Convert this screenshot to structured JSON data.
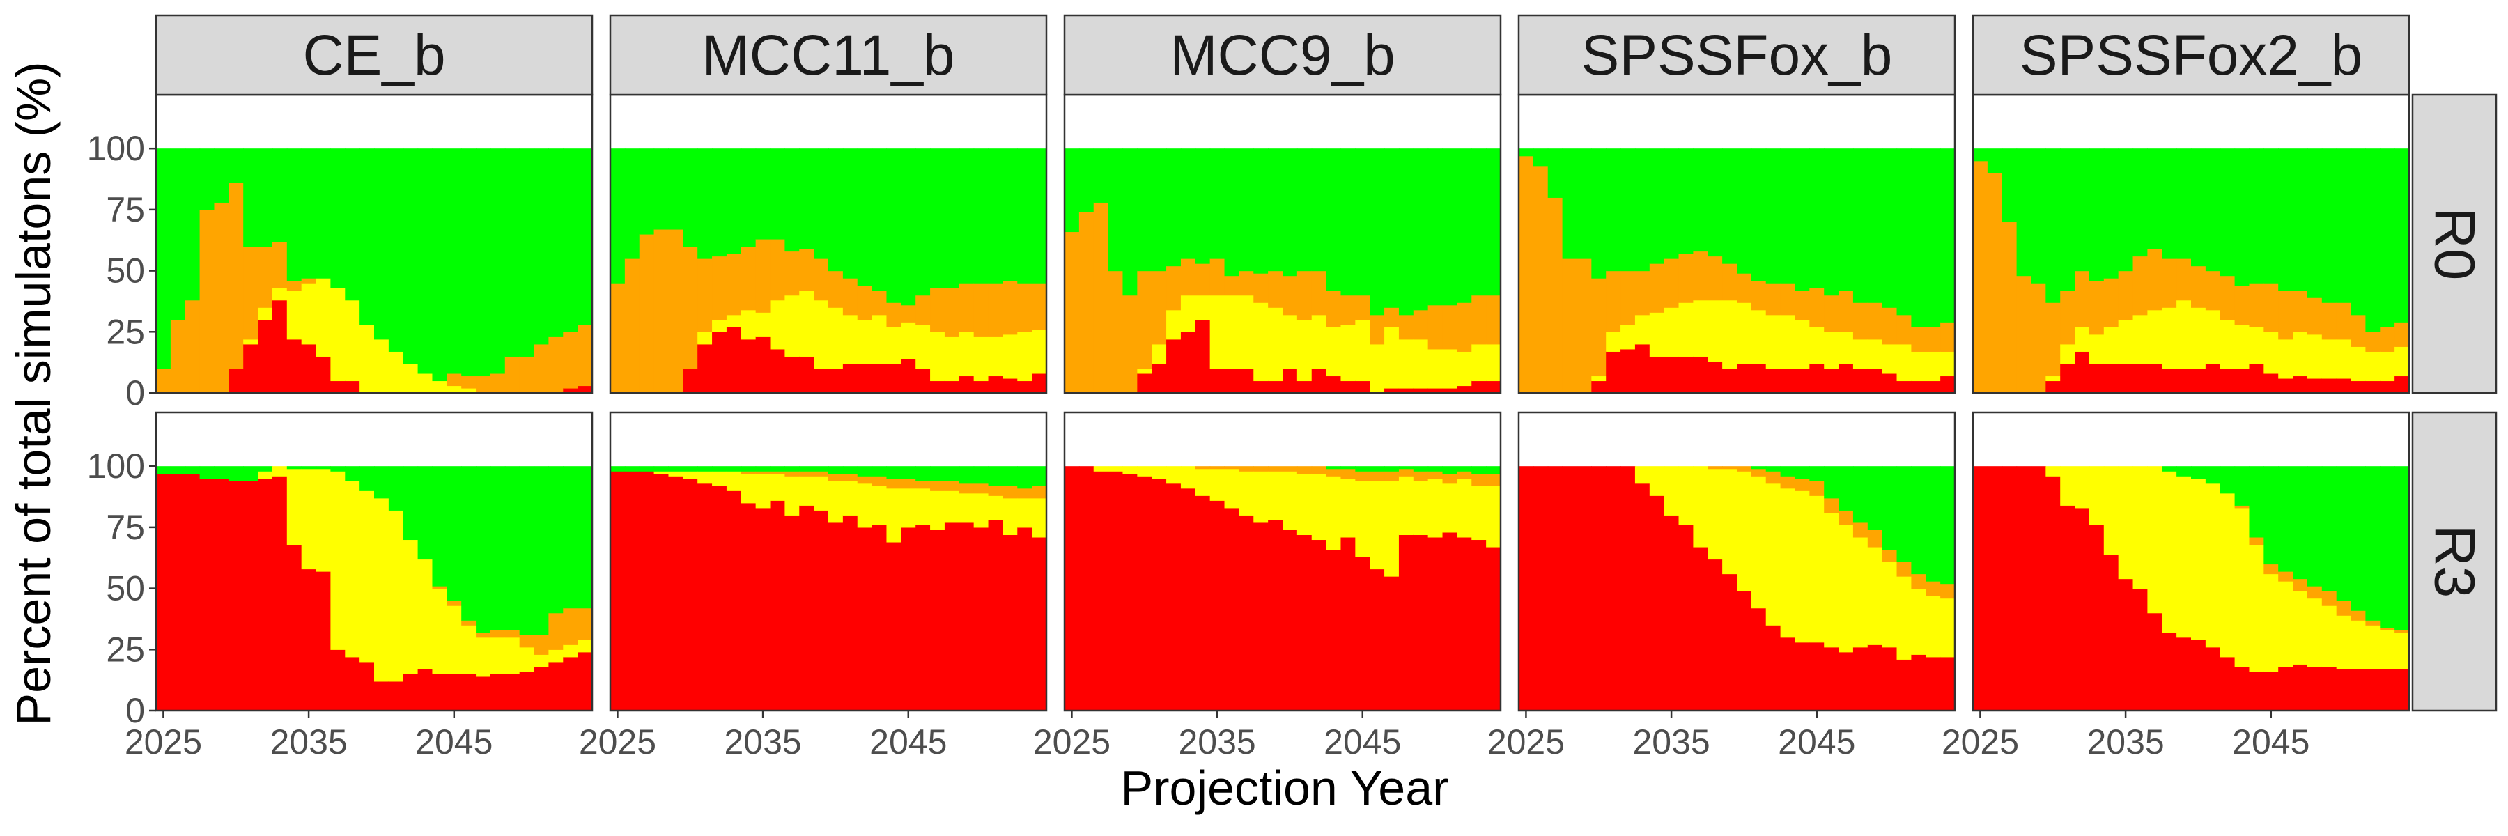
{
  "chart_data": {
    "type": "area",
    "facet_layout": "grid",
    "xlabel": "Projection Year",
    "ylabel": "Percent of total simulatons (%)",
    "xlim": [
      2024.5,
      2054.5
    ],
    "ylim": [
      0,
      100
    ],
    "xticks": [
      2025,
      2035,
      2045
    ],
    "yticks": [
      0,
      25,
      50,
      75,
      100
    ],
    "stack_order_bottom_to_top": [
      "red",
      "yellow",
      "orange",
      "green"
    ],
    "colors": {
      "red": "#ff0000",
      "yellow": "#ffff00",
      "orange": "#ffa500",
      "green": "#00ff00"
    },
    "legend": "none",
    "grid": false,
    "columns": [
      "CE_b",
      "MCC11_b",
      "MCC9_b",
      "SPSSFox_b",
      "SPSSFox2_b"
    ],
    "rows": [
      "R0",
      "R3"
    ],
    "years": [
      2025,
      2026,
      2027,
      2028,
      2029,
      2030,
      2031,
      2032,
      2033,
      2034,
      2035,
      2036,
      2037,
      2038,
      2039,
      2040,
      2041,
      2042,
      2043,
      2044,
      2045,
      2046,
      2047,
      2048,
      2049,
      2050,
      2051,
      2052,
      2053,
      2054
    ],
    "panels": [
      {
        "column": "CE_b",
        "row": "R0",
        "red": [
          0,
          0,
          0,
          0,
          0,
          10,
          20,
          30,
          38,
          22,
          20,
          15,
          5,
          5,
          0,
          0,
          0,
          0,
          0,
          0,
          0,
          0,
          0,
          0,
          0,
          0,
          0,
          0,
          2,
          3
        ],
        "yellow": [
          0,
          0,
          0,
          0,
          0,
          0,
          2,
          5,
          5,
          20,
          25,
          32,
          38,
          33,
          28,
          22,
          17,
          12,
          8,
          5,
          3,
          2,
          0,
          0,
          0,
          0,
          0,
          0,
          0,
          0
        ],
        "orange": [
          10,
          30,
          38,
          75,
          78,
          76,
          38,
          25,
          19,
          4,
          2,
          0,
          0,
          0,
          0,
          0,
          0,
          0,
          0,
          0,
          5,
          5,
          7,
          8,
          15,
          15,
          20,
          23,
          23,
          25
        ]
      },
      {
        "column": "CE_b",
        "row": "R3",
        "red": [
          97,
          97,
          97,
          95,
          95,
          94,
          94,
          95,
          96,
          68,
          58,
          57,
          25,
          22,
          20,
          12,
          12,
          15,
          17,
          15,
          15,
          15,
          14,
          15,
          15,
          16,
          18,
          20,
          22,
          24
        ],
        "yellow": [
          0,
          0,
          0,
          0,
          0,
          0,
          0,
          3,
          4,
          31,
          41,
          42,
          73,
          72,
          70,
          75,
          70,
          55,
          45,
          35,
          28,
          20,
          16,
          15,
          15,
          10,
          5,
          5,
          5,
          5
        ],
        "orange": [
          0,
          0,
          0,
          0,
          0,
          0,
          0,
          0,
          0,
          0,
          0,
          0,
          0,
          0,
          0,
          0,
          0,
          0,
          0,
          1,
          2,
          2,
          2,
          3,
          3,
          5,
          8,
          15,
          15,
          13
        ]
      },
      {
        "column": "MCC11_b",
        "row": "R0",
        "red": [
          0,
          0,
          0,
          0,
          0,
          10,
          20,
          25,
          27,
          22,
          23,
          18,
          15,
          15,
          10,
          10,
          12,
          12,
          12,
          12,
          14,
          10,
          5,
          5,
          7,
          5,
          7,
          6,
          5,
          8
        ],
        "yellow": [
          0,
          0,
          0,
          0,
          0,
          0,
          5,
          5,
          5,
          12,
          10,
          20,
          25,
          27,
          28,
          25,
          20,
          18,
          20,
          15,
          15,
          18,
          20,
          18,
          18,
          18,
          16,
          18,
          20,
          18
        ],
        "orange": [
          45,
          55,
          65,
          67,
          67,
          50,
          30,
          26,
          25,
          26,
          30,
          25,
          18,
          17,
          17,
          15,
          15,
          14,
          10,
          10,
          7,
          12,
          18,
          20,
          20,
          22,
          22,
          22,
          20,
          19
        ]
      },
      {
        "column": "MCC11_b",
        "row": "R3",
        "red": [
          98,
          98,
          98,
          97,
          96,
          95,
          93,
          92,
          90,
          85,
          83,
          86,
          80,
          84,
          82,
          77,
          80,
          75,
          76,
          69,
          75,
          76,
          74,
          77,
          77,
          75,
          78,
          72,
          75,
          71
        ],
        "yellow": [
          0,
          0,
          0,
          1,
          2,
          3,
          5,
          6,
          8,
          12,
          14,
          11,
          16,
          12,
          14,
          17,
          14,
          18,
          16,
          22,
          16,
          15,
          16,
          13,
          12,
          14,
          10,
          15,
          12,
          16
        ],
        "orange": [
          0,
          0,
          0,
          0,
          0,
          0,
          0,
          0,
          0,
          1,
          1,
          1,
          2,
          2,
          2,
          3,
          3,
          3,
          4,
          4,
          4,
          3,
          4,
          4,
          4,
          4,
          4,
          5,
          4,
          5
        ]
      },
      {
        "column": "MCC9_b",
        "row": "R0",
        "red": [
          0,
          0,
          0,
          0,
          0,
          8,
          12,
          22,
          25,
          30,
          10,
          10,
          10,
          5,
          5,
          10,
          5,
          10,
          7,
          5,
          5,
          0,
          2,
          2,
          2,
          2,
          2,
          3,
          5,
          5
        ],
        "yellow": [
          0,
          0,
          0,
          0,
          0,
          2,
          8,
          12,
          15,
          10,
          30,
          30,
          30,
          32,
          30,
          22,
          25,
          22,
          20,
          23,
          25,
          20,
          25,
          20,
          20,
          16,
          16,
          14,
          15,
          15
        ],
        "orange": [
          66,
          74,
          78,
          50,
          40,
          40,
          30,
          18,
          15,
          13,
          15,
          8,
          10,
          12,
          15,
          16,
          20,
          18,
          15,
          12,
          10,
          12,
          8,
          10,
          12,
          18,
          18,
          20,
          20,
          20
        ]
      },
      {
        "column": "MCC9_b",
        "row": "R3",
        "red": [
          100,
          100,
          98,
          98,
          97,
          96,
          95,
          93,
          91,
          88,
          86,
          83,
          80,
          77,
          78,
          74,
          72,
          70,
          66,
          71,
          63,
          58,
          55,
          72,
          72,
          71,
          73,
          71,
          70,
          67
        ],
        "yellow": [
          0,
          0,
          2,
          2,
          3,
          4,
          5,
          7,
          9,
          11,
          13,
          16,
          18,
          21,
          20,
          24,
          25,
          27,
          30,
          24,
          31,
          36,
          39,
          24,
          22,
          24,
          20,
          24,
          22,
          25
        ],
        "orange": [
          0,
          0,
          0,
          0,
          0,
          0,
          0,
          0,
          0,
          1,
          1,
          1,
          2,
          2,
          2,
          2,
          3,
          3,
          3,
          4,
          4,
          4,
          4,
          3,
          4,
          3,
          4,
          3,
          5,
          5
        ]
      },
      {
        "column": "SPSSFox_b",
        "row": "R0",
        "red": [
          0,
          0,
          0,
          0,
          0,
          5,
          17,
          18,
          20,
          15,
          15,
          15,
          15,
          13,
          10,
          12,
          12,
          10,
          10,
          10,
          12,
          10,
          12,
          10,
          10,
          8,
          5,
          5,
          5,
          7
        ],
        "yellow": [
          0,
          0,
          0,
          0,
          0,
          2,
          8,
          10,
          12,
          18,
          20,
          22,
          23,
          25,
          28,
          25,
          22,
          22,
          22,
          20,
          15,
          15,
          13,
          12,
          12,
          12,
          15,
          12,
          12,
          10
        ],
        "orange": [
          97,
          93,
          80,
          55,
          55,
          40,
          25,
          22,
          18,
          20,
          20,
          20,
          20,
          18,
          15,
          12,
          12,
          13,
          13,
          12,
          16,
          15,
          17,
          15,
          15,
          15,
          12,
          10,
          10,
          12
        ]
      },
      {
        "column": "SPSSFox_b",
        "row": "R3",
        "red": [
          100,
          100,
          100,
          100,
          100,
          100,
          100,
          100,
          93,
          88,
          80,
          76,
          67,
          62,
          56,
          49,
          42,
          35,
          30,
          28,
          28,
          26,
          24,
          26,
          27,
          26,
          21,
          23,
          22,
          22
        ],
        "yellow": [
          0,
          0,
          0,
          0,
          0,
          0,
          0,
          0,
          7,
          12,
          20,
          24,
          33,
          37,
          43,
          49,
          54,
          58,
          61,
          62,
          60,
          55,
          52,
          45,
          40,
          35,
          34,
          27,
          25,
          24
        ],
        "orange": [
          0,
          0,
          0,
          0,
          0,
          0,
          0,
          0,
          0,
          0,
          0,
          0,
          0,
          1,
          1,
          2,
          3,
          5,
          5,
          5,
          6,
          6,
          6,
          6,
          7,
          5,
          6,
          6,
          6,
          6
        ]
      },
      {
        "column": "SPSSFox2_b",
        "row": "R0",
        "red": [
          0,
          0,
          0,
          0,
          0,
          5,
          12,
          17,
          12,
          12,
          12,
          12,
          12,
          10,
          10,
          10,
          12,
          10,
          10,
          12,
          8,
          6,
          7,
          6,
          6,
          6,
          5,
          5,
          5,
          7
        ],
        "yellow": [
          0,
          0,
          0,
          0,
          0,
          2,
          8,
          10,
          12,
          15,
          18,
          20,
          22,
          25,
          28,
          25,
          22,
          20,
          18,
          15,
          17,
          16,
          18,
          18,
          16,
          16,
          14,
          12,
          12,
          12
        ],
        "orange": [
          95,
          90,
          70,
          48,
          45,
          30,
          22,
          23,
          22,
          20,
          20,
          24,
          25,
          20,
          17,
          17,
          16,
          18,
          16,
          18,
          20,
          20,
          17,
          15,
          15,
          15,
          13,
          8,
          10,
          10
        ]
      },
      {
        "column": "SPSSFox2_b",
        "row": "R3",
        "red": [
          100,
          100,
          100,
          100,
          100,
          96,
          84,
          83,
          76,
          64,
          54,
          50,
          40,
          32,
          30,
          29,
          26,
          22,
          18,
          16,
          16,
          18,
          19,
          18,
          18,
          17,
          17,
          17,
          17,
          17
        ],
        "yellow": [
          0,
          0,
          0,
          0,
          0,
          4,
          16,
          17,
          24,
          36,
          46,
          50,
          60,
          66,
          66,
          66,
          67,
          67,
          65,
          52,
          40,
          35,
          30,
          28,
          25,
          22,
          20,
          18,
          16,
          15
        ],
        "orange": [
          0,
          0,
          0,
          0,
          0,
          0,
          0,
          0,
          0,
          0,
          0,
          0,
          0,
          0,
          0,
          0,
          0,
          0,
          1,
          3,
          4,
          4,
          5,
          5,
          6,
          6,
          4,
          2,
          1,
          1
        ]
      }
    ]
  }
}
